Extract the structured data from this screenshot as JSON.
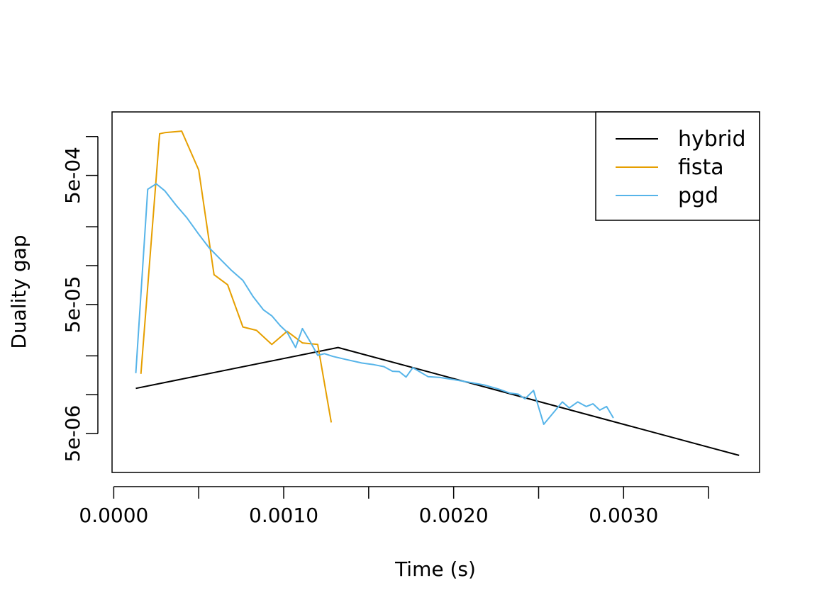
{
  "chart_data": {
    "type": "line",
    "xlabel": "Time (s)",
    "ylabel": "Duality gap",
    "x_scale": "linear",
    "y_scale": "log",
    "xlim": [
      -1e-05,
      0.0038
    ],
    "ylim": [
      2.5e-06,
      0.00155
    ],
    "x_ticks": [
      0.0,
      0.0005,
      0.001,
      0.0015,
      0.002,
      0.0025,
      0.003,
      0.0035
    ],
    "x_tick_labels": [
      {
        "value": 0.0,
        "label": "0.0000"
      },
      {
        "value": 0.001,
        "label": "0.0010"
      },
      {
        "value": 0.002,
        "label": "0.0020"
      },
      {
        "value": 0.003,
        "label": "0.0030"
      }
    ],
    "y_ticks": [
      5e-06,
      1e-05,
      2e-05,
      5e-05,
      0.0001,
      0.0002,
      0.0005,
      0.001
    ],
    "y_tick_labels": [
      {
        "value": 5e-06,
        "label": "5e-06"
      },
      {
        "value": 5e-05,
        "label": "5e-05"
      },
      {
        "value": 0.0005,
        "label": "5e-04"
      }
    ],
    "grid": false,
    "legend": {
      "position": "top-right",
      "boxed": true
    },
    "series": [
      {
        "name": "hybrid",
        "color": "#000000",
        "points": [
          [
            0.00013,
            1.12e-05
          ],
          [
            0.00132,
            2.32e-05
          ],
          [
            0.00368,
            3.39e-06
          ]
        ]
      },
      {
        "name": "fista",
        "color": "#E69F00",
        "points": [
          [
            0.00016,
            1.45e-05
          ],
          [
            0.00027,
            0.00105
          ],
          [
            0.0003,
            0.00107
          ],
          [
            0.0004,
            0.0011
          ],
          [
            0.0005,
            0.00055
          ],
          [
            0.00059,
            8.5e-05
          ],
          [
            0.00067,
            7.1e-05
          ],
          [
            0.00076,
            3.35e-05
          ],
          [
            0.00084,
            3.15e-05
          ],
          [
            0.00093,
            2.45e-05
          ],
          [
            0.00102,
            3.1e-05
          ],
          [
            0.00111,
            2.52e-05
          ],
          [
            0.0012,
            2.45e-05
          ],
          [
            0.00128,
            6.1e-06
          ]
        ]
      },
      {
        "name": "pgd",
        "color": "#56B4E9",
        "points": [
          [
            0.00013,
            1.47e-05
          ],
          [
            0.0002,
            0.00039
          ],
          [
            0.00025,
            0.00043
          ],
          [
            0.0003,
            0.00038
          ],
          [
            0.00037,
            0.00029
          ],
          [
            0.00043,
            0.000235
          ],
          [
            0.0005,
            0.000175
          ],
          [
            0.00056,
            0.000138
          ],
          [
            0.00063,
            0.000111
          ],
          [
            0.00069,
            9.25e-05
          ],
          [
            0.00076,
            7.68e-05
          ],
          [
            0.00082,
            5.75e-05
          ],
          [
            0.00088,
            4.55e-05
          ],
          [
            0.00093,
            4.08e-05
          ],
          [
            0.00098,
            3.42e-05
          ],
          [
            0.00102,
            3.05e-05
          ],
          [
            0.00107,
            2.32e-05
          ],
          [
            0.00111,
            3.25e-05
          ],
          [
            0.00116,
            2.52e-05
          ],
          [
            0.0012,
            2.02e-05
          ],
          [
            0.00124,
            2.08e-05
          ],
          [
            0.00129,
            1.98e-05
          ],
          [
            0.00137,
            1.87e-05
          ],
          [
            0.00146,
            1.76e-05
          ],
          [
            0.00153,
            1.71e-05
          ],
          [
            0.00159,
            1.65e-05
          ],
          [
            0.00164,
            1.52e-05
          ],
          [
            0.00168,
            1.51e-05
          ],
          [
            0.00172,
            1.37e-05
          ],
          [
            0.00176,
            1.62e-05
          ],
          [
            0.00185,
            1.38e-05
          ],
          [
            0.00192,
            1.36e-05
          ],
          [
            0.002,
            1.31e-05
          ],
          [
            0.00209,
            1.25e-05
          ],
          [
            0.00218,
            1.19e-05
          ],
          [
            0.00227,
            1.1e-05
          ],
          [
            0.00233,
            1.03e-05
          ],
          [
            0.00238,
            1.01e-05
          ],
          [
            0.00242,
            9.3e-06
          ],
          [
            0.00247,
            1.08e-05
          ],
          [
            0.00253,
            5.9e-06
          ],
          [
            0.00264,
            8.8e-06
          ],
          [
            0.00268,
            7.9e-06
          ],
          [
            0.00273,
            8.8e-06
          ],
          [
            0.00278,
            8.1e-06
          ],
          [
            0.00282,
            8.5e-06
          ],
          [
            0.00286,
            7.6e-06
          ],
          [
            0.0029,
            8.1e-06
          ],
          [
            0.00294,
            6.6e-06
          ]
        ]
      }
    ]
  }
}
